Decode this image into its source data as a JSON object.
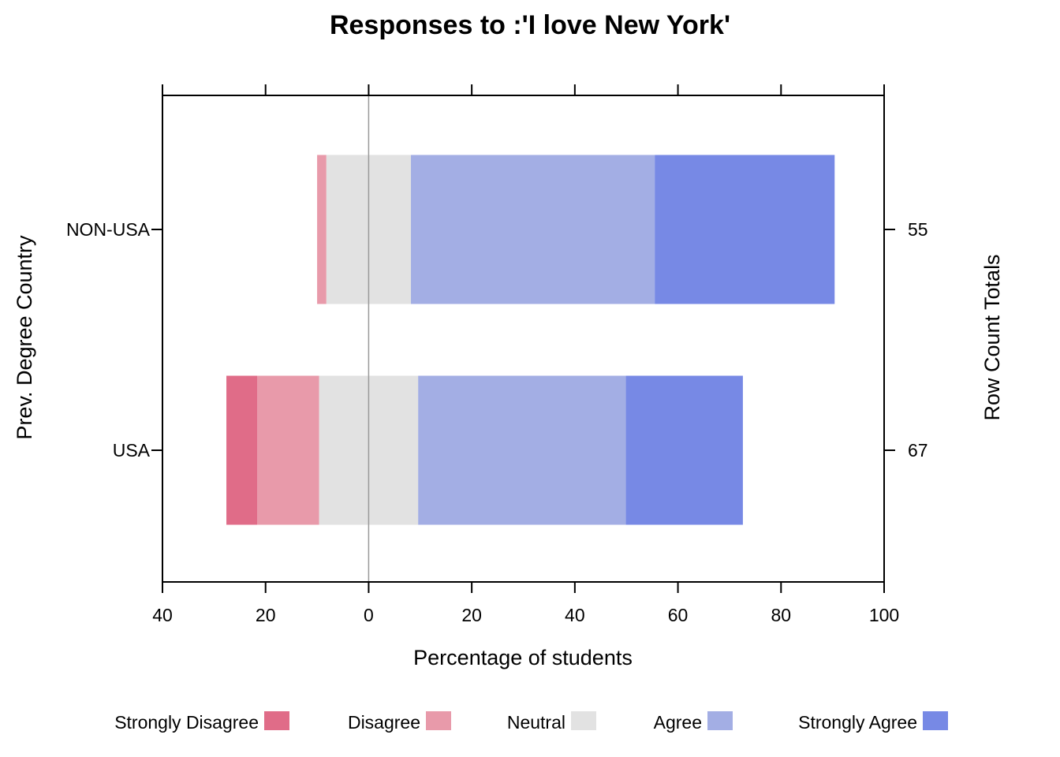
{
  "chart_data": {
    "type": "bar",
    "orientation": "horizontal",
    "stacking": "diverging",
    "title": "Responses to :'I love New York'",
    "xlabel": "Percentage of students",
    "ylabel": "Prev. Degree Country",
    "y2label": "Row Count Totals",
    "xlim": [
      -40,
      100
    ],
    "xticks": [
      -40,
      -20,
      0,
      20,
      40,
      60,
      80,
      100
    ],
    "xtick_labels": [
      "40",
      "20",
      "0",
      "20",
      "40",
      "60",
      "80",
      "100"
    ],
    "categories": [
      "NON-USA",
      "USA"
    ],
    "row_totals": [
      "55",
      "67"
    ],
    "series": [
      {
        "name": "Strongly Disagree",
        "color": "#E06C88",
        "values": [
          0,
          6.0
        ]
      },
      {
        "name": "Disagree",
        "color": "#E89AAA",
        "values": [
          1.8,
          12.0
        ]
      },
      {
        "name": "Neutral",
        "color": "#E2E2E2",
        "values": [
          16.4,
          19.2
        ]
      },
      {
        "name": "Agree",
        "color": "#A3AEE4",
        "values": [
          47.3,
          40.3
        ]
      },
      {
        "name": "Strongly Agree",
        "color": "#7789E5",
        "values": [
          34.9,
          22.7
        ]
      }
    ],
    "neutral_series": "Neutral",
    "grid": false,
    "legend_position": "bottom"
  }
}
